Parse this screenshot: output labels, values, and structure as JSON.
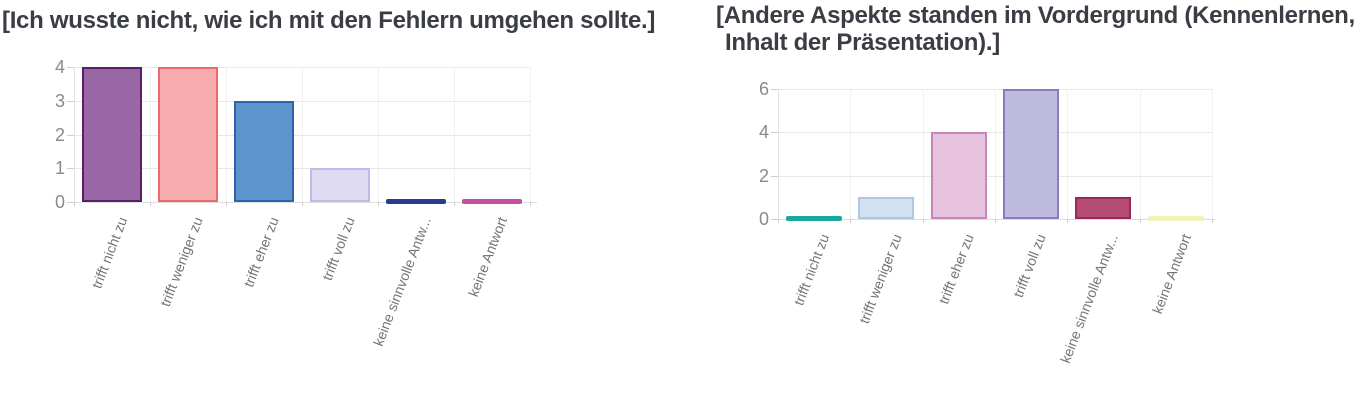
{
  "chart_data": [
    {
      "type": "bar",
      "title": "[Ich wusste nicht, wie ich mit den Fehlern umgehen sollte.]",
      "title_lines": [
        "[Ich wusste nicht, wie ich mit den Fehlern umgehen sollte.]"
      ],
      "categories": [
        "trifft nicht zu",
        "trifft weniger zu",
        "trifft eher zu",
        "trifft voll zu",
        "keine sinnvolle Antw...",
        "keine Antwort"
      ],
      "values": [
        4,
        4,
        3,
        1,
        0,
        0
      ],
      "xlabel": "",
      "ylabel": "",
      "ylim": [
        0,
        4
      ],
      "y_ticks": [
        0,
        1,
        2,
        3,
        4
      ],
      "grid": true,
      "legend": "none",
      "bar_styles": [
        {
          "fill": "#9a67a6",
          "border": "#5a1f66"
        },
        {
          "fill": "#f7abad",
          "border": "#eb686c"
        },
        {
          "fill": "#5d94cd",
          "border": "#2e62ae"
        },
        {
          "fill": "#dedaf2",
          "border": "#c3bbe6"
        },
        {
          "fill": "#2c3a8f",
          "border": "#2c3a8f"
        },
        {
          "fill": "#c0519e",
          "border": "#c0519e"
        }
      ]
    },
    {
      "type": "bar",
      "title": "[Andere Aspekte standen im Vordergrund (Kennenlernen, Inhalt der Präsentation).]",
      "title_lines": [
        "[Andere Aspekte standen im Vordergrund (Kennenlernen,",
        "Inhalt der Präsentation).]"
      ],
      "categories": [
        "trifft nicht zu",
        "trifft weniger zu",
        "trifft eher zu",
        "trifft voll zu",
        "keine sinnvolle Antw...",
        "keine Antwort"
      ],
      "values": [
        0,
        1,
        4,
        6,
        1,
        0
      ],
      "xlabel": "",
      "ylabel": "",
      "ylim": [
        0,
        6
      ],
      "y_ticks": [
        0,
        2,
        4,
        6
      ],
      "grid": true,
      "legend": "none",
      "bar_styles": [
        {
          "fill": "#1ba89e",
          "border": "#1ba89e"
        },
        {
          "fill": "#d3e0ef",
          "border": "#aec7e3"
        },
        {
          "fill": "#e6c2dd",
          "border": "#c886b8"
        },
        {
          "fill": "#bebade",
          "border": "#847dc0"
        },
        {
          "fill": "#b44d74",
          "border": "#9c2656"
        },
        {
          "fill": "#f6f1b6",
          "border": "#f6f1b6"
        }
      ]
    }
  ],
  "colors": {
    "title": "#3a3e44",
    "axis_label": "#8a8a8a",
    "category_label": "#757575",
    "gridline": "#e8e8e8",
    "background": "#ffffff"
  }
}
